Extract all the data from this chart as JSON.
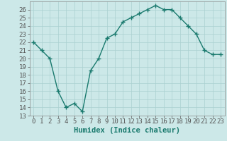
{
  "x": [
    0,
    1,
    2,
    3,
    4,
    5,
    6,
    7,
    8,
    9,
    10,
    11,
    12,
    13,
    14,
    15,
    16,
    17,
    18,
    19,
    20,
    21,
    22,
    23
  ],
  "y": [
    22,
    21,
    20,
    16,
    14,
    14.5,
    13.5,
    18.5,
    20,
    22.5,
    23,
    24.5,
    25,
    25.5,
    26,
    26.5,
    26,
    26,
    25,
    24,
    23,
    21,
    20.5,
    20.5
  ],
  "line_color": "#1a7a6e",
  "marker": "+",
  "bg_color": "#cce8e8",
  "grid_major_color": "#aad0d0",
  "grid_minor_color": "#bbdddd",
  "xlabel": "Humidex (Indice chaleur)",
  "xlim": [
    -0.5,
    23.5
  ],
  "ylim": [
    13,
    27
  ],
  "yticks": [
    13,
    14,
    15,
    16,
    17,
    18,
    19,
    20,
    21,
    22,
    23,
    24,
    25,
    26
  ],
  "xticks": [
    0,
    1,
    2,
    3,
    4,
    5,
    6,
    7,
    8,
    9,
    10,
    11,
    12,
    13,
    14,
    15,
    16,
    17,
    18,
    19,
    20,
    21,
    22,
    23
  ],
  "xlabel_fontsize": 7.5,
  "tick_fontsize": 6.5,
  "line_width": 1.0,
  "marker_size": 4
}
